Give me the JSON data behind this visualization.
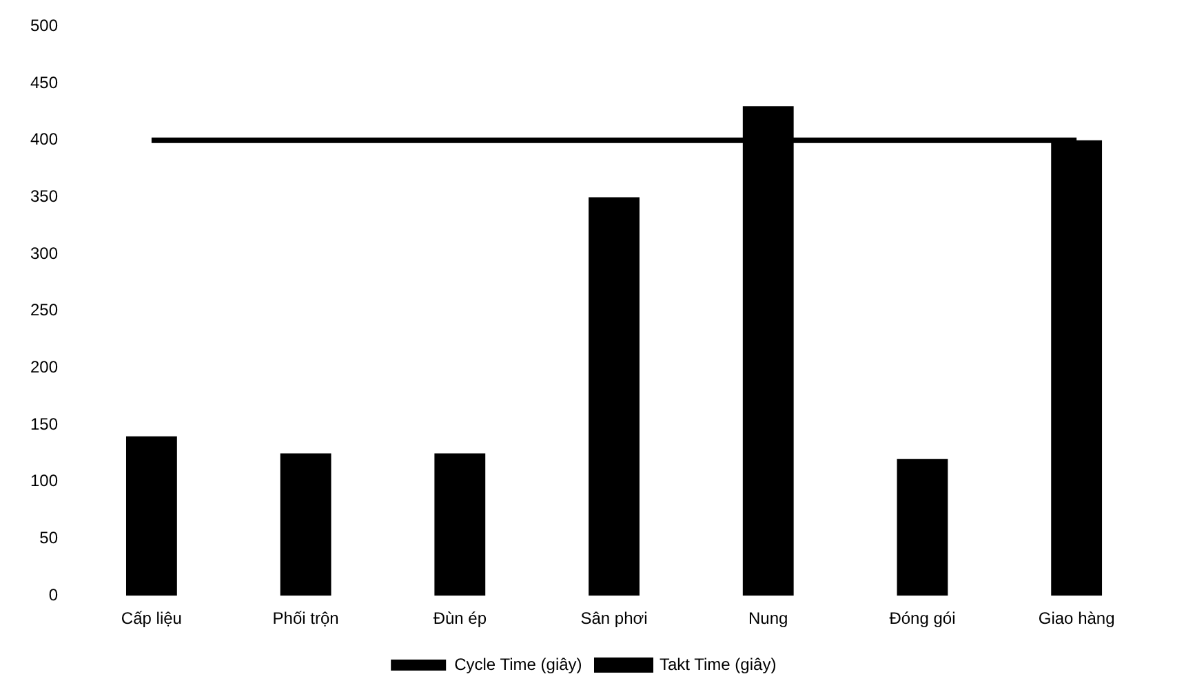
{
  "chart_data": {
    "type": "bar",
    "categories": [
      "Cấp liệu",
      "Phối trộn",
      "Đùn ép",
      "Sân phơi",
      "Nung",
      "Đóng gói",
      "Giao hàng"
    ],
    "series": [
      {
        "name": "Cycle Time (giây)",
        "color": "#000000",
        "values": [
          140,
          125,
          125,
          350,
          430,
          120,
          400
        ]
      },
      {
        "name": "Takt Time (giây)",
        "type": "line",
        "color": "#000000",
        "values": [
          400,
          400,
          400,
          400,
          400,
          400,
          400
        ]
      }
    ],
    "ylim": [
      0,
      500
    ],
    "yticks": [
      0,
      50,
      100,
      150,
      200,
      250,
      300,
      350,
      400,
      450,
      500
    ],
    "grid": false,
    "legend": "bottom",
    "marker": "none"
  }
}
